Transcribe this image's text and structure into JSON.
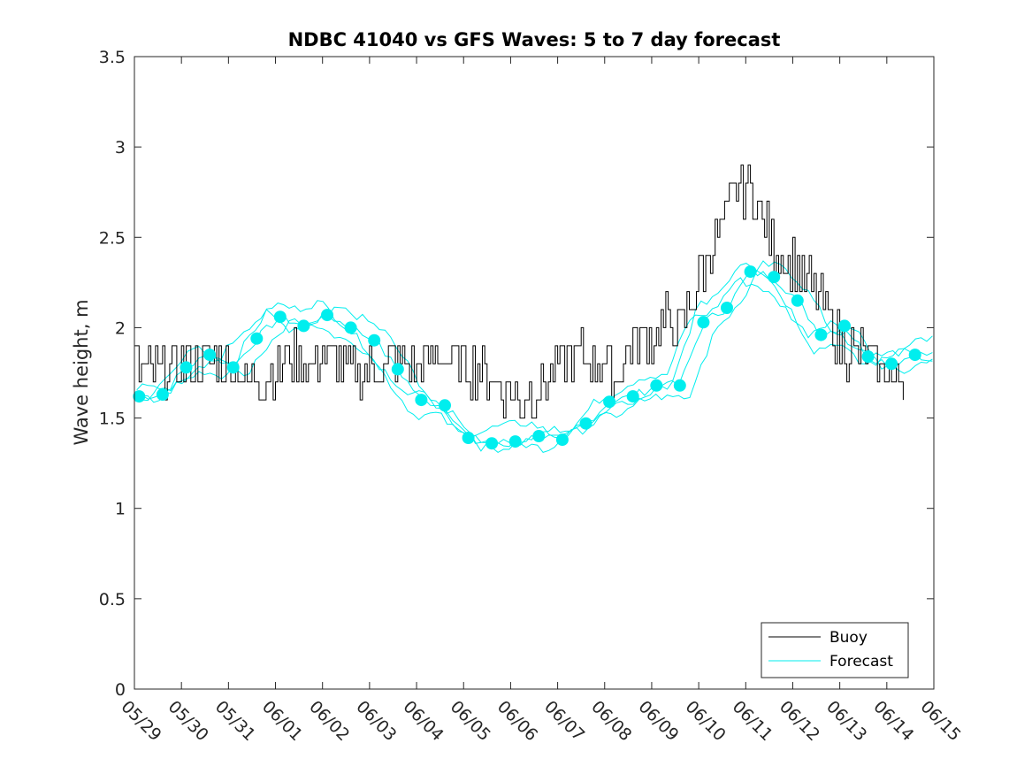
{
  "chart_data": {
    "type": "line",
    "title": "NDBC 41040 vs GFS Waves: 5 to 7 day forecast",
    "xlabel": "",
    "ylabel": "Wave height, m",
    "x_tick_labels": [
      "05/29",
      "05/30",
      "05/31",
      "06/01",
      "06/02",
      "06/03",
      "06/04",
      "06/05",
      "06/06",
      "06/07",
      "06/08",
      "06/09",
      "06/10",
      "06/11",
      "06/12",
      "06/13",
      "06/14",
      "06/15"
    ],
    "y_ticks": [
      0,
      0.5,
      1,
      1.5,
      2,
      2.5,
      3,
      3.5
    ],
    "y_tick_labels": [
      "0",
      "0.5",
      "1",
      "1.5",
      "2",
      "2.5",
      "3",
      "3.5"
    ],
    "xlim_days": [
      0,
      17
    ],
    "ylim": [
      0,
      3.5
    ],
    "grid": false,
    "legend": {
      "placement": "bottom-right",
      "entries": [
        "Buoy",
        "Forecast"
      ]
    },
    "colors": {
      "buoy": "#000000",
      "forecast": "#00eeee"
    },
    "series": [
      {
        "name": "Buoy",
        "x_days": [
          0,
          0.5,
          1,
          1.5,
          2,
          2.5,
          3,
          3.3,
          3.7,
          4,
          4.5,
          5,
          5.5,
          6,
          6.5,
          7,
          7.5,
          7.7,
          8,
          8.2,
          8.5,
          9,
          9.5,
          10,
          10.2,
          10.5,
          11,
          11.3,
          11.6,
          11.9,
          12,
          12.3,
          12.5,
          12.7,
          12.9,
          13.2,
          13.5,
          13.8,
          14,
          14.5,
          15,
          15.5,
          16,
          16.2
        ],
        "values": [
          1.8,
          1.75,
          1.8,
          1.85,
          1.8,
          1.7,
          1.75,
          1.85,
          1.8,
          1.85,
          1.8,
          1.75,
          1.8,
          1.75,
          1.85,
          1.8,
          1.75,
          1.7,
          1.65,
          1.6,
          1.65,
          1.8,
          1.85,
          1.8,
          1.7,
          1.9,
          1.95,
          2.05,
          2.0,
          2.2,
          2.3,
          2.45,
          2.55,
          2.75,
          2.8,
          2.7,
          2.5,
          2.4,
          2.35,
          2.2,
          1.9,
          1.85,
          1.75,
          1.72
        ]
      },
      {
        "name": "Forecast",
        "x_days": [
          0.1,
          0.6,
          1.1,
          1.6,
          2.1,
          2.6,
          3.1,
          3.6,
          4.1,
          4.6,
          5.1,
          5.6,
          6.1,
          6.6,
          7.1,
          7.6,
          8.1,
          8.6,
          9.1,
          9.6,
          10.1,
          10.6,
          11.1,
          11.6,
          12.1,
          12.6,
          13.1,
          13.6,
          14.1,
          14.6,
          15.1,
          15.6,
          16.1,
          16.6
        ],
        "values": [
          1.62,
          1.63,
          1.78,
          1.85,
          1.78,
          1.94,
          2.06,
          2.01,
          2.07,
          2.0,
          1.93,
          1.77,
          1.6,
          1.57,
          1.39,
          1.36,
          1.37,
          1.4,
          1.38,
          1.47,
          1.59,
          1.62,
          1.68,
          1.68,
          2.03,
          2.11,
          2.31,
          2.28,
          2.15,
          1.96,
          2.01,
          1.84,
          1.8,
          1.85
        ]
      }
    ]
  }
}
